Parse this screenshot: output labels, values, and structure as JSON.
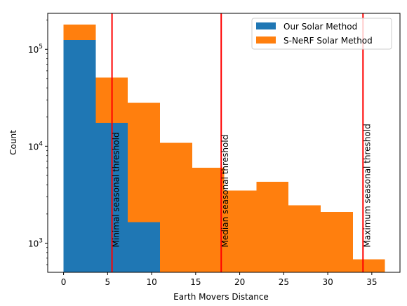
{
  "chart_data": {
    "type": "bar",
    "xlabel": "Earth Movers Distance",
    "ylabel": "Count",
    "y_scale": "log",
    "xlim": [
      -1.8,
      38.2
    ],
    "ylim": [
      500,
      235000
    ],
    "x_ticks": [
      0,
      5,
      10,
      15,
      20,
      25,
      30,
      35
    ],
    "y_ticks": [
      {
        "value": 1000,
        "base": "10",
        "exp": "3"
      },
      {
        "value": 10000,
        "base": "10",
        "exp": "4"
      },
      {
        "value": 100000,
        "base": "10",
        "exp": "5"
      }
    ],
    "legend_position": "top-right",
    "grid": false,
    "series": [
      {
        "name": "S-NeRF Solar Method",
        "color": "#ff7f0e",
        "bins": [
          {
            "x0": 0.0,
            "x1": 3.65,
            "value": 180000
          },
          {
            "x0": 3.65,
            "x1": 7.3,
            "value": 51000
          },
          {
            "x0": 7.3,
            "x1": 10.95,
            "value": 28000
          },
          {
            "x0": 10.95,
            "x1": 14.6,
            "value": 10800
          },
          {
            "x0": 14.6,
            "x1": 18.25,
            "value": 6000
          },
          {
            "x0": 18.25,
            "x1": 21.9,
            "value": 3500
          },
          {
            "x0": 21.9,
            "x1": 25.55,
            "value": 4300
          },
          {
            "x0": 25.55,
            "x1": 29.2,
            "value": 2450
          },
          {
            "x0": 29.2,
            "x1": 32.85,
            "value": 2100
          },
          {
            "x0": 32.85,
            "x1": 36.5,
            "value": 680
          }
        ]
      },
      {
        "name": "Our Solar Method",
        "color": "#1f77b4",
        "bins": [
          {
            "x0": 0.0,
            "x1": 3.65,
            "value": 125000
          },
          {
            "x0": 3.65,
            "x1": 7.3,
            "value": 17500
          },
          {
            "x0": 7.3,
            "x1": 10.95,
            "value": 1650
          }
        ]
      }
    ],
    "legend_order": [
      "Our Solar Method",
      "S-NeRF Solar Method"
    ],
    "thresholds": [
      {
        "x": 5.5,
        "label": "Minimal seasonal threshold",
        "color": "#ff0000"
      },
      {
        "x": 17.9,
        "label": "Median seasonal threshold",
        "color": "#ff0000"
      },
      {
        "x": 34.0,
        "label": "Maximum seasonal threshold",
        "color": "#ff0000"
      }
    ]
  }
}
